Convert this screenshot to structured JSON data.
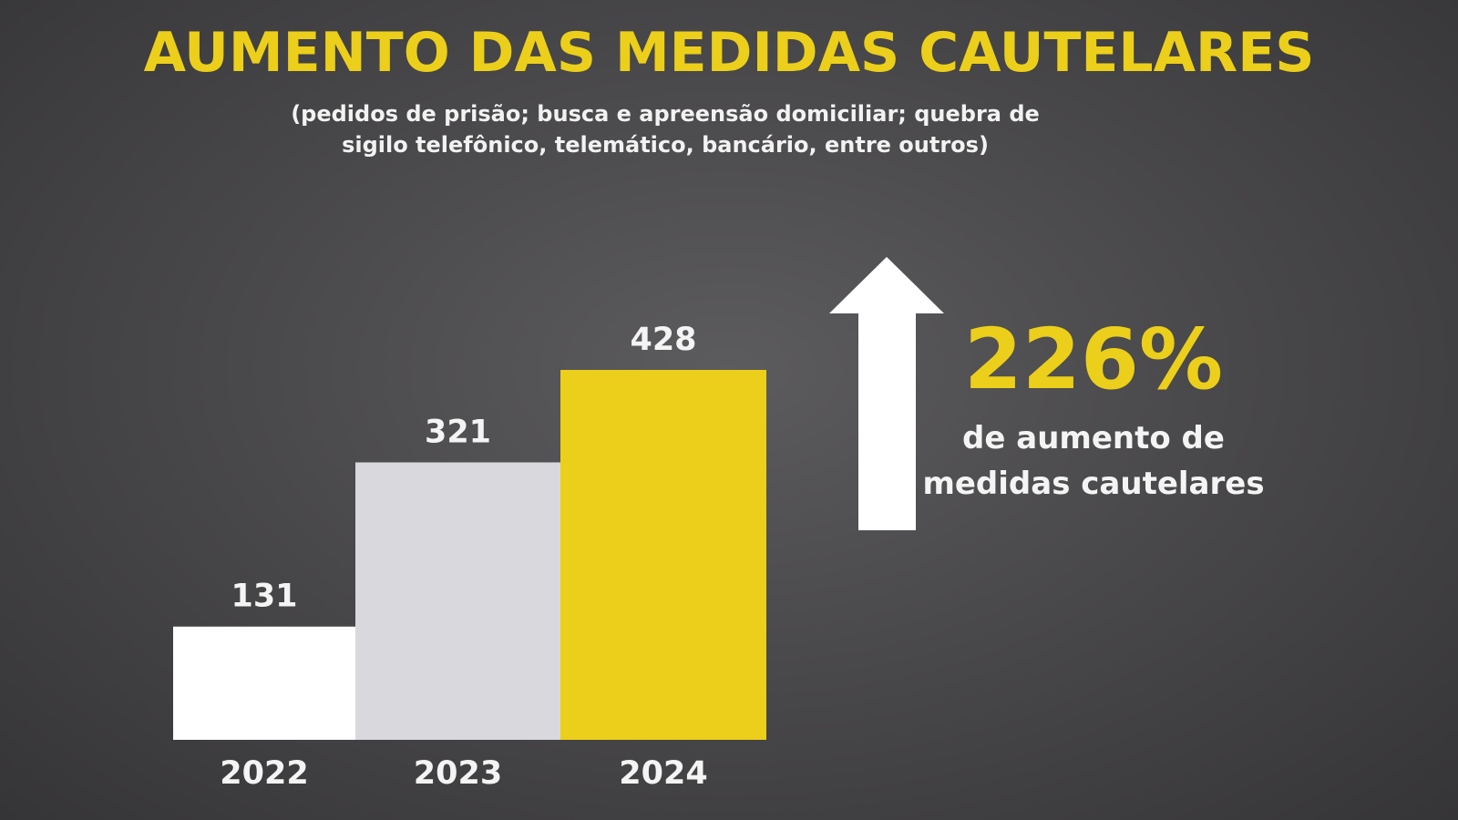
{
  "header": {
    "title": "AUMENTO DAS MEDIDAS CAUTELARES",
    "subtitle": "(pedidos de prisão; busca e apreensão domiciliar; quebra de sigilo telefônico, telemático, bancário, entre outros)"
  },
  "callout": {
    "percent": "226%",
    "caption": "de aumento de medidas cautelares",
    "icon": "arrow-up-icon"
  },
  "colors": {
    "background": "#4a494b",
    "accent": "#eccf1a",
    "bar_2022": "#ffffff",
    "bar_2023": "#d9d8dc",
    "bar_2024": "#eccf1a",
    "text": "#f4f4f4"
  },
  "chart_data": {
    "type": "bar",
    "title": "AUMENTO DAS MEDIDAS CAUTELARES",
    "categories": [
      "2022",
      "2023",
      "2024"
    ],
    "values": [
      131,
      321,
      428
    ],
    "value_labels": [
      "131",
      "321",
      "428"
    ],
    "xlabel": "",
    "ylabel": "",
    "ylim": [
      0,
      428
    ],
    "grid": false,
    "legend": "none"
  }
}
